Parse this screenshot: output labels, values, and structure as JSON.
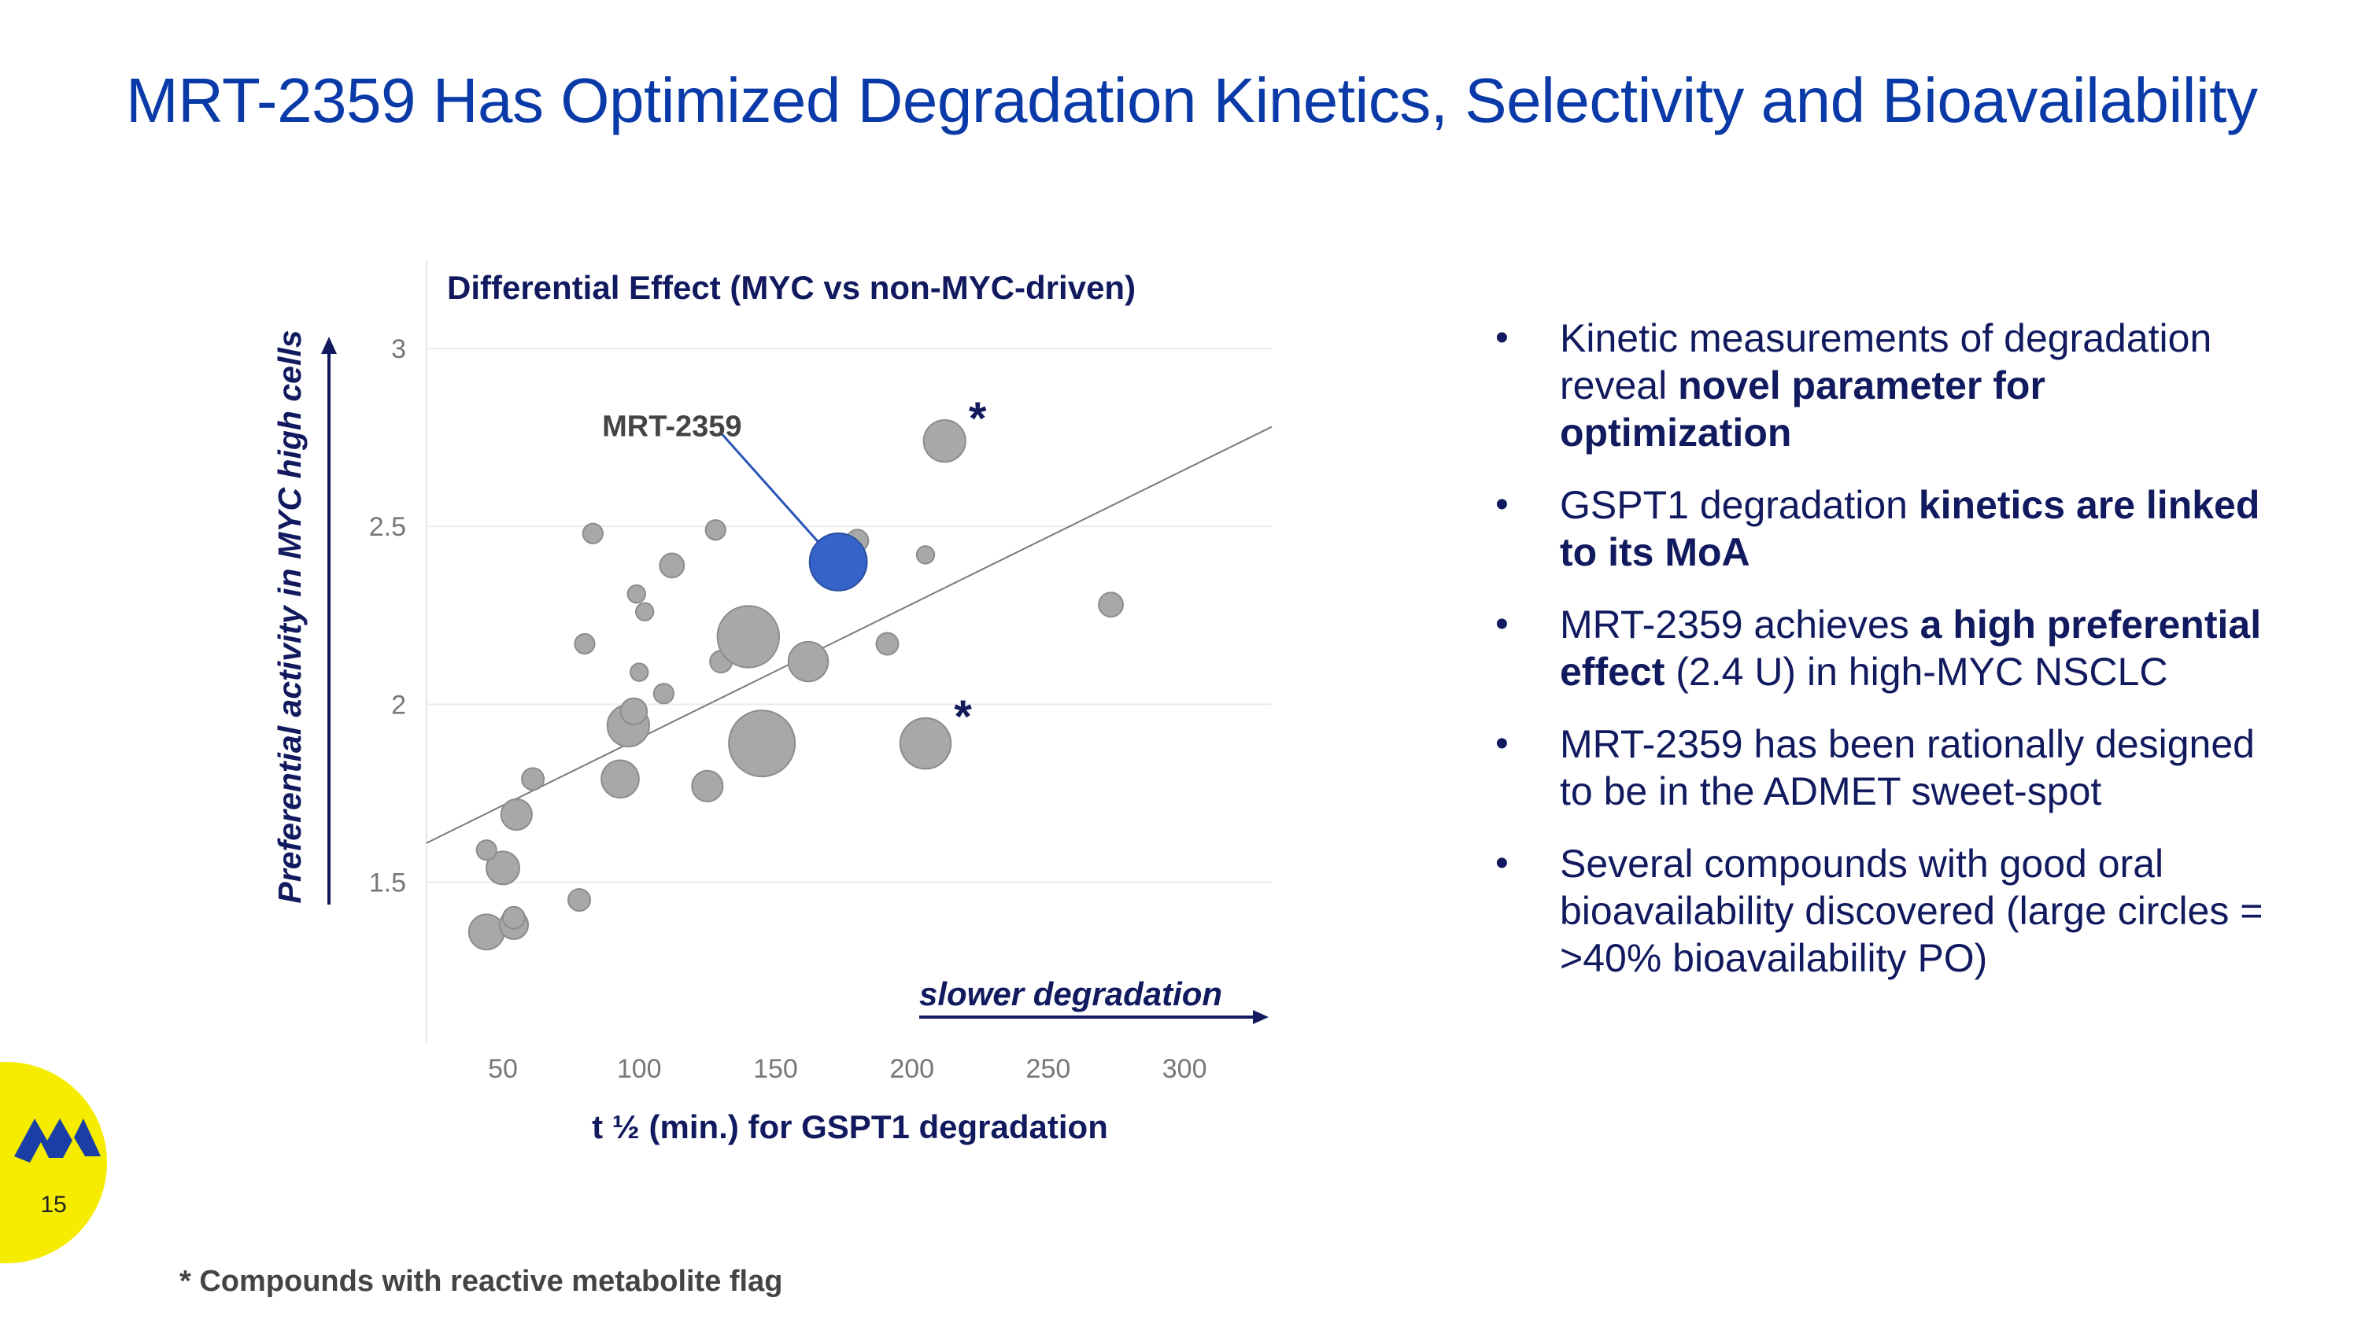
{
  "slide": {
    "title": "MRT-2359 Has Optimized Degradation Kinetics, Selectivity and Bioavailability",
    "page_number": "15",
    "footnote": "* Compounds with reactive metabolite flag",
    "logo_icon": "monte-rosa-logo-icon"
  },
  "colors": {
    "title": "#0a3aa8",
    "navy": "#111a5e",
    "bubble": "#a8a8a8",
    "highlight": "#3563c9",
    "badge": "#f5ec00"
  },
  "chart_data": {
    "type": "scatter",
    "title": "Differential Effect (MYC vs non-MYC-driven)",
    "xlabel": "t ½ (min.) for GSPT1 degradation",
    "ylabel": "Preferential activity in MYC high cells",
    "x_annotation": "slower degradation",
    "xlim": [
      22,
      332
    ],
    "ylim": [
      1.05,
      3.25
    ],
    "x_ticks": [
      50,
      100,
      150,
      200,
      250,
      300
    ],
    "y_ticks": [
      1.5,
      2,
      2.5,
      3
    ],
    "trendline": {
      "x": [
        22,
        332
      ],
      "y": [
        1.61,
        2.78
      ]
    },
    "bubble_size_note": "large circles = >40% bioavailability PO",
    "points": [
      {
        "x": 44,
        "y": 1.36,
        "size": 1.6
      },
      {
        "x": 54,
        "y": 1.38,
        "size": 1.3
      },
      {
        "x": 54,
        "y": 1.4,
        "size": 1.0
      },
      {
        "x": 50,
        "y": 1.54,
        "size": 1.5
      },
      {
        "x": 44,
        "y": 1.59,
        "size": 0.9
      },
      {
        "x": 55,
        "y": 1.69,
        "size": 1.4
      },
      {
        "x": 61,
        "y": 1.79,
        "size": 1.0
      },
      {
        "x": 78,
        "y": 1.45,
        "size": 1.0
      },
      {
        "x": 93,
        "y": 1.79,
        "size": 1.7
      },
      {
        "x": 96,
        "y": 1.94,
        "size": 1.9
      },
      {
        "x": 98,
        "y": 1.98,
        "size": 1.2
      },
      {
        "x": 100,
        "y": 2.09,
        "size": 0.8
      },
      {
        "x": 99,
        "y": 2.31,
        "size": 0.8
      },
      {
        "x": 102,
        "y": 2.26,
        "size": 0.8
      },
      {
        "x": 109,
        "y": 2.03,
        "size": 0.9
      },
      {
        "x": 112,
        "y": 2.39,
        "size": 1.1
      },
      {
        "x": 80,
        "y": 2.17,
        "size": 0.9
      },
      {
        "x": 83,
        "y": 2.48,
        "size": 0.9
      },
      {
        "x": 125,
        "y": 1.77,
        "size": 1.4
      },
      {
        "x": 128,
        "y": 2.49,
        "size": 0.9
      },
      {
        "x": 130,
        "y": 2.12,
        "size": 1.0
      },
      {
        "x": 140,
        "y": 2.19,
        "size": 2.8
      },
      {
        "x": 145,
        "y": 1.89,
        "size": 3.0
      },
      {
        "x": 162,
        "y": 2.12,
        "size": 1.8
      },
      {
        "x": 180,
        "y": 2.46,
        "size": 1.0
      },
      {
        "x": 191,
        "y": 2.17,
        "size": 1.0
      },
      {
        "x": 205,
        "y": 1.89,
        "size": 2.3,
        "flag": "*"
      },
      {
        "x": 205,
        "y": 2.42,
        "size": 0.8
      },
      {
        "x": 212,
        "y": 2.74,
        "size": 1.9,
        "flag": "*"
      },
      {
        "x": 273,
        "y": 2.28,
        "size": 1.1
      },
      {
        "x": 173,
        "y": 2.4,
        "size": 2.6,
        "highlight": true,
        "label": "MRT-2359"
      }
    ]
  },
  "bullets": [
    {
      "parts": [
        {
          "text": "Kinetic measurements of degradation reveal "
        },
        {
          "text": "novel parameter for optimization",
          "bold": true
        }
      ]
    },
    {
      "parts": [
        {
          "text": "GSPT1 degradation "
        },
        {
          "text": "kinetics are linked to its MoA",
          "bold": true
        }
      ]
    },
    {
      "parts": [
        {
          "text": "MRT-2359 achieves "
        },
        {
          "text": "a high preferential effect",
          "bold": true
        },
        {
          "text": " (2.4 U) in high-MYC NSCLC"
        }
      ]
    },
    {
      "parts": [
        {
          "text": "MRT-2359 has been rationally designed to be in the ADMET sweet-spot"
        }
      ]
    },
    {
      "parts": [
        {
          "text": "Several compounds with good oral bioavailability discovered (large circles = >40% bioavailability PO)"
        }
      ]
    }
  ],
  "bullet_glyph": "•"
}
